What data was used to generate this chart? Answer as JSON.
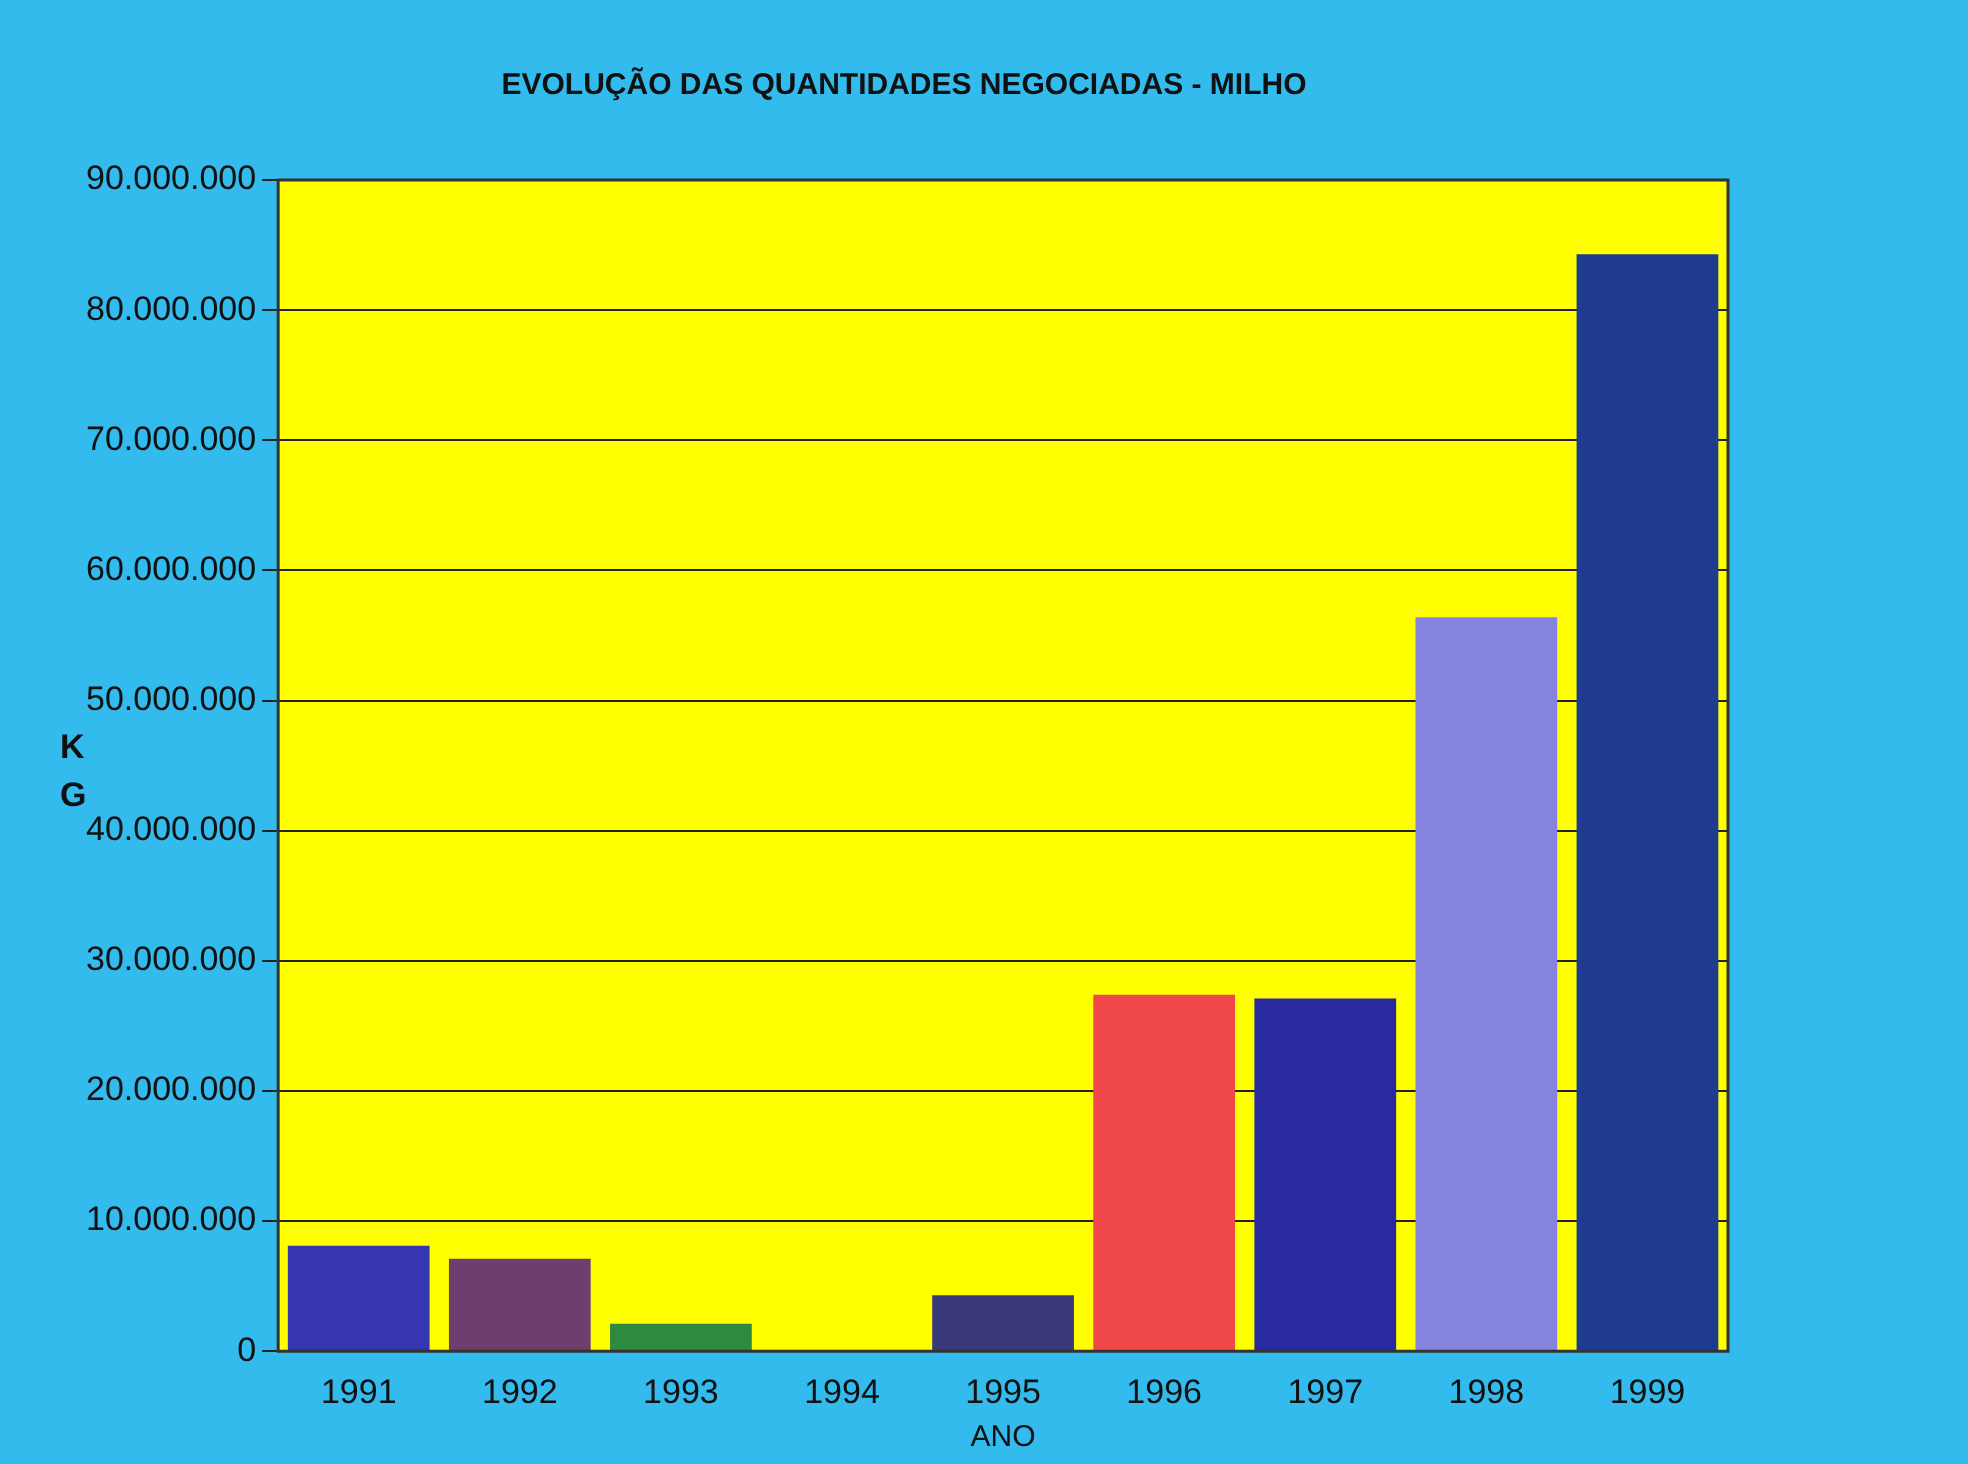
{
  "chart_data": {
    "type": "bar",
    "title": "EVOLUÇÃO DAS QUANTIDADES NEGOCIADAS - MILHO",
    "xlabel": "ANO",
    "ylabel": "KG",
    "categories": [
      "1991",
      "1992",
      "1993",
      "1994",
      "1995",
      "1996",
      "1997",
      "1998",
      "1999"
    ],
    "values": [
      8100000,
      7100000,
      2100000,
      0,
      4300000,
      27400000,
      27100000,
      56400000,
      84300000
    ],
    "colors": [
      "#3636b0",
      "#6e3f6e",
      "#2e8b3e",
      "#3a3a7a",
      "#3a3a7a",
      "#f04848",
      "#2a2aa0",
      "#8484e0",
      "#1f3b8f"
    ],
    "ylim": [
      0,
      90000000
    ],
    "yticks": [
      {
        "value": 0,
        "label": "0"
      },
      {
        "value": 10000000,
        "label": "10.000.000"
      },
      {
        "value": 20000000,
        "label": "20.000.000"
      },
      {
        "value": 30000000,
        "label": "30.000.000"
      },
      {
        "value": 40000000,
        "label": "40.000.000"
      },
      {
        "value": 50000000,
        "label": "50.000.000"
      },
      {
        "value": 60000000,
        "label": "60.000.000"
      },
      {
        "value": 70000000,
        "label": "70.000.000"
      },
      {
        "value": 80000000,
        "label": "80.000.000"
      },
      {
        "value": 90000000,
        "label": "90.000.000"
      }
    ],
    "grid": "y",
    "legend": false
  }
}
